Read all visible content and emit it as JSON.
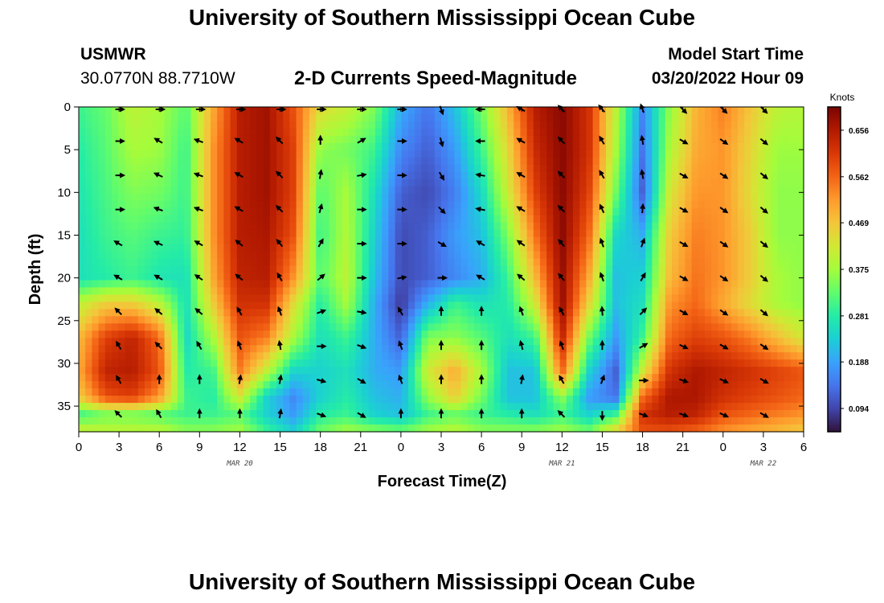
{
  "header": {
    "title": "University of Southern Mississippi Ocean Cube",
    "station_id": "USMWR",
    "station_coords": "30.0770N  88.7710W",
    "plot_title": "2-D Currents Speed-Magnitude",
    "model_start_label": "Model Start Time",
    "model_start_value": "03/20/2022 Hour 09",
    "bottom_title": "University of Southern Mississippi Ocean Cube"
  },
  "chart_data": {
    "type": "heatmap",
    "title": "2-D Currents Speed-Magnitude",
    "xlabel": "Forecast Time(Z)",
    "ylabel": "Depth (ft)",
    "x_range_hours": [
      0,
      54
    ],
    "y_range_ft": [
      0,
      38
    ],
    "x_tick_labels": [
      "0",
      "3",
      "6",
      "9",
      "12",
      "15",
      "18",
      "21",
      "0",
      "3",
      "6",
      "9",
      "12",
      "15",
      "18",
      "21",
      "0",
      "3",
      "6"
    ],
    "y_ticks": [
      0,
      5,
      10,
      15,
      20,
      25,
      30,
      35
    ],
    "date_labels": [
      {
        "label": "MAR 20",
        "hour": 12
      },
      {
        "label": "MAR 21",
        "hour": 36
      },
      {
        "label": "MAR 22",
        "hour": 51
      }
    ],
    "colorbar": {
      "title": "Knots",
      "min": 0.047,
      "max": 0.703,
      "ticks": [
        0.094,
        0.188,
        0.281,
        0.375,
        0.469,
        0.562,
        0.656
      ],
      "colors": [
        "#30123b",
        "#4145ab",
        "#4675ed",
        "#39a2fc",
        "#1bcfd4",
        "#24eca6",
        "#61fc6c",
        "#a4fc3b",
        "#d1e834",
        "#f3c63a",
        "#fe9b2d",
        "#f36315",
        "#d93806",
        "#b11901",
        "#7a0402"
      ]
    },
    "speed_samples": {
      "hours": [
        0,
        2,
        4,
        6,
        8,
        10,
        12,
        14,
        16,
        18,
        20,
        22,
        24,
        26,
        28,
        30,
        32,
        34,
        36,
        38,
        40,
        42,
        44,
        46,
        48,
        50,
        52,
        54
      ],
      "depths_ft": [
        0,
        5,
        10,
        15,
        20,
        23,
        27,
        31,
        34,
        36,
        38
      ],
      "values_knots": [
        [
          0.3,
          0.33,
          0.4,
          0.38,
          0.32,
          0.5,
          0.65,
          0.67,
          0.58,
          0.44,
          0.41,
          0.35,
          0.2,
          0.14,
          0.22,
          0.34,
          0.49,
          0.65,
          0.69,
          0.62,
          0.4,
          0.16,
          0.36,
          0.49,
          0.54,
          0.47,
          0.4,
          0.39
        ],
        [
          0.28,
          0.32,
          0.38,
          0.37,
          0.3,
          0.52,
          0.65,
          0.67,
          0.6,
          0.36,
          0.34,
          0.3,
          0.16,
          0.12,
          0.18,
          0.3,
          0.45,
          0.63,
          0.69,
          0.62,
          0.38,
          0.14,
          0.38,
          0.5,
          0.52,
          0.45,
          0.37,
          0.37
        ],
        [
          0.27,
          0.31,
          0.35,
          0.34,
          0.3,
          0.52,
          0.65,
          0.67,
          0.6,
          0.32,
          0.38,
          0.26,
          0.12,
          0.1,
          0.15,
          0.25,
          0.42,
          0.6,
          0.69,
          0.6,
          0.34,
          0.12,
          0.42,
          0.52,
          0.52,
          0.44,
          0.36,
          0.36
        ],
        [
          0.26,
          0.3,
          0.32,
          0.3,
          0.29,
          0.52,
          0.65,
          0.66,
          0.58,
          0.3,
          0.39,
          0.24,
          0.1,
          0.12,
          0.18,
          0.22,
          0.35,
          0.55,
          0.69,
          0.56,
          0.25,
          0.2,
          0.46,
          0.54,
          0.52,
          0.46,
          0.36,
          0.36
        ],
        [
          0.26,
          0.28,
          0.3,
          0.27,
          0.26,
          0.5,
          0.64,
          0.65,
          0.52,
          0.32,
          0.4,
          0.22,
          0.1,
          0.12,
          0.16,
          0.2,
          0.3,
          0.48,
          0.68,
          0.5,
          0.22,
          0.24,
          0.48,
          0.55,
          0.52,
          0.46,
          0.38,
          0.36
        ],
        [
          0.4,
          0.46,
          0.46,
          0.4,
          0.26,
          0.46,
          0.62,
          0.62,
          0.44,
          0.28,
          0.38,
          0.2,
          0.08,
          0.2,
          0.3,
          0.26,
          0.28,
          0.42,
          0.68,
          0.45,
          0.22,
          0.26,
          0.52,
          0.56,
          0.5,
          0.44,
          0.38,
          0.36
        ],
        [
          0.48,
          0.6,
          0.64,
          0.56,
          0.25,
          0.38,
          0.58,
          0.54,
          0.38,
          0.26,
          0.3,
          0.2,
          0.12,
          0.35,
          0.36,
          0.32,
          0.26,
          0.3,
          0.64,
          0.34,
          0.18,
          0.3,
          0.56,
          0.6,
          0.58,
          0.54,
          0.48,
          0.42
        ],
        [
          0.5,
          0.64,
          0.65,
          0.58,
          0.28,
          0.3,
          0.54,
          0.4,
          0.24,
          0.24,
          0.26,
          0.2,
          0.18,
          0.42,
          0.5,
          0.38,
          0.22,
          0.22,
          0.56,
          0.24,
          0.12,
          0.42,
          0.62,
          0.66,
          0.64,
          0.62,
          0.6,
          0.58
        ],
        [
          0.46,
          0.58,
          0.6,
          0.52,
          0.3,
          0.28,
          0.42,
          0.24,
          0.16,
          0.24,
          0.28,
          0.22,
          0.2,
          0.36,
          0.46,
          0.34,
          0.22,
          0.22,
          0.36,
          0.18,
          0.14,
          0.56,
          0.66,
          0.66,
          0.62,
          0.6,
          0.58,
          0.56
        ],
        [
          0.3,
          0.34,
          0.34,
          0.32,
          0.3,
          0.3,
          0.32,
          0.24,
          0.18,
          0.28,
          0.3,
          0.24,
          0.22,
          0.3,
          0.33,
          0.3,
          0.28,
          0.26,
          0.3,
          0.24,
          0.3,
          0.62,
          0.65,
          0.64,
          0.58,
          0.56,
          0.54,
          0.52
        ],
        [
          0.42,
          0.4,
          0.4,
          0.4,
          0.36,
          0.36,
          0.38,
          0.3,
          0.24,
          0.34,
          0.38,
          0.36,
          0.34,
          0.38,
          0.4,
          0.36,
          0.36,
          0.36,
          0.38,
          0.34,
          0.46,
          0.58,
          0.58,
          0.56,
          0.52,
          0.5,
          0.48,
          0.46
        ]
      ]
    },
    "current_vectors": {
      "hours": [
        3,
        6,
        9,
        12,
        15,
        18,
        21,
        24,
        27,
        30,
        33,
        36,
        39,
        42,
        45,
        48,
        51
      ],
      "depths_ft": [
        0,
        4,
        8,
        12,
        16,
        20,
        24,
        28,
        32,
        36
      ],
      "direction_deg": [
        [
          90,
          90,
          90,
          90,
          90,
          90,
          90,
          90,
          160,
          270,
          300,
          315,
          320,
          340,
          135,
          135,
          135
        ],
        [
          90,
          300,
          290,
          300,
          315,
          0,
          60,
          90,
          165,
          270,
          300,
          315,
          330,
          350,
          120,
          125,
          130
        ],
        [
          90,
          295,
          290,
          300,
          315,
          10,
          80,
          90,
          150,
          280,
          300,
          315,
          330,
          350,
          120,
          125,
          130
        ],
        [
          90,
          290,
          290,
          300,
          315,
          15,
          90,
          90,
          135,
          280,
          300,
          315,
          335,
          5,
          120,
          125,
          130
        ],
        [
          300,
          295,
          300,
          310,
          320,
          30,
          90,
          90,
          120,
          300,
          305,
          320,
          340,
          20,
          120,
          125,
          130
        ],
        [
          300,
          300,
          305,
          310,
          330,
          50,
          90,
          80,
          90,
          300,
          310,
          320,
          340,
          30,
          120,
          125,
          130
        ],
        [
          315,
          310,
          310,
          330,
          340,
          70,
          100,
          330,
          0,
          0,
          340,
          330,
          355,
          45,
          120,
          125,
          130
        ],
        [
          330,
          315,
          330,
          340,
          350,
          90,
          110,
          340,
          0,
          0,
          345,
          340,
          0,
          60,
          115,
          120,
          125
        ],
        [
          330,
          0,
          0,
          10,
          10,
          105,
          120,
          340,
          0,
          0,
          10,
          330,
          20,
          90,
          110,
          115,
          120
        ],
        [
          315,
          330,
          0,
          0,
          10,
          110,
          120,
          0,
          0,
          0,
          0,
          315,
          180,
          110,
          110,
          115,
          120
        ]
      ]
    }
  }
}
